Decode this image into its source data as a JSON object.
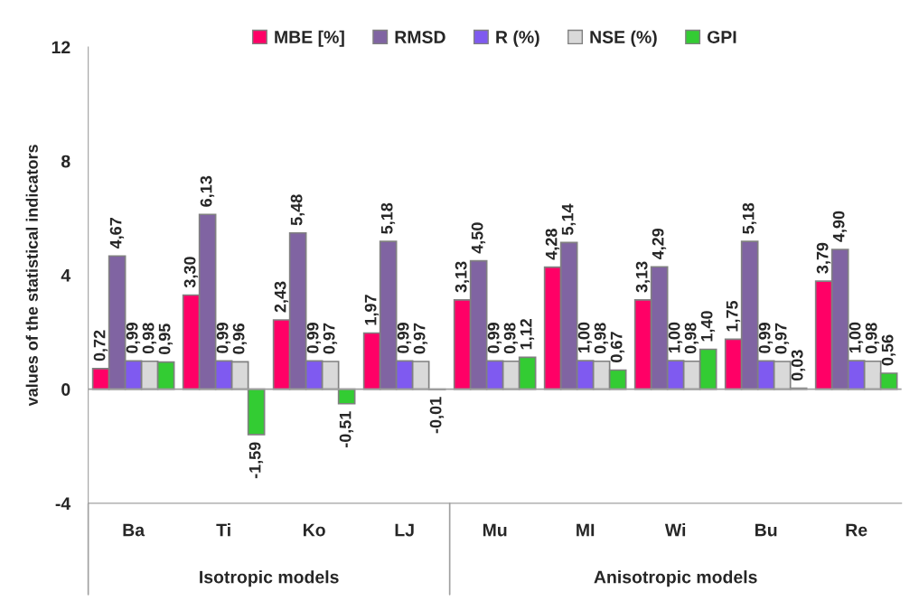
{
  "chart_data": {
    "type": "bar",
    "ylabel": "values of the statistical indicators",
    "categories": [
      "Ba",
      "Ti",
      "Ko",
      "LJ",
      "Mu",
      "MI",
      "Wi",
      "Bu",
      "Re"
    ],
    "series": [
      {
        "name": "MBE [%]",
        "color": "#ff0066",
        "values": [
          0.72,
          3.3,
          2.43,
          1.97,
          3.13,
          4.28,
          3.13,
          1.75,
          3.79
        ],
        "value_labels": [
          "0,72",
          "3,30",
          "2,43",
          "1,97",
          "3,13",
          "4,28",
          "3,13",
          "1,75",
          "3,79"
        ]
      },
      {
        "name": "RMSD",
        "color": "#8064a2",
        "values": [
          4.67,
          6.13,
          5.48,
          5.18,
          4.5,
          5.14,
          4.29,
          5.18,
          4.9
        ],
        "value_labels": [
          "4,67",
          "6,13",
          "5,48",
          "5,18",
          "4,50",
          "5,14",
          "4,29",
          "5,18",
          "4,90"
        ]
      },
      {
        "name": "R (%)",
        "color": "#7f5af0",
        "values": [
          0.99,
          0.99,
          0.99,
          0.99,
          0.99,
          1.0,
          1.0,
          0.99,
          1.0
        ],
        "value_labels": [
          "0,99",
          "0,99",
          "0,99",
          "0,99",
          "0,99",
          "1,00",
          "1,00",
          "0,99",
          "1,00"
        ]
      },
      {
        "name": "NSE (%)",
        "color": "#d9d9d9",
        "values": [
          0.98,
          0.96,
          0.97,
          0.97,
          0.98,
          0.98,
          0.98,
          0.97,
          0.98
        ],
        "value_labels": [
          "0,98",
          "0,96",
          "0,97",
          "0,97",
          "0,98",
          "0,98",
          "0,98",
          "0,97",
          "0,98"
        ]
      },
      {
        "name": "GPI",
        "color": "#33cc33",
        "values": [
          0.95,
          -1.59,
          -0.51,
          -0.01,
          1.12,
          0.67,
          1.4,
          0.03,
          0.56
        ],
        "value_labels": [
          "0,95",
          "-1,59",
          "-0,51",
          "-0,01",
          "1,12",
          "0,67",
          "1,40",
          "0,03",
          "0,56"
        ]
      }
    ],
    "ylim": [
      -4,
      12
    ],
    "yticks": [
      -4,
      0,
      4,
      8,
      12
    ],
    "ref_lines": [
      {
        "axis": "y",
        "value": 0,
        "color": "#a0a0a0"
      }
    ],
    "annotations": [
      "Isotropic models",
      "Anisotropic models"
    ],
    "grid": false,
    "legend": "top"
  }
}
